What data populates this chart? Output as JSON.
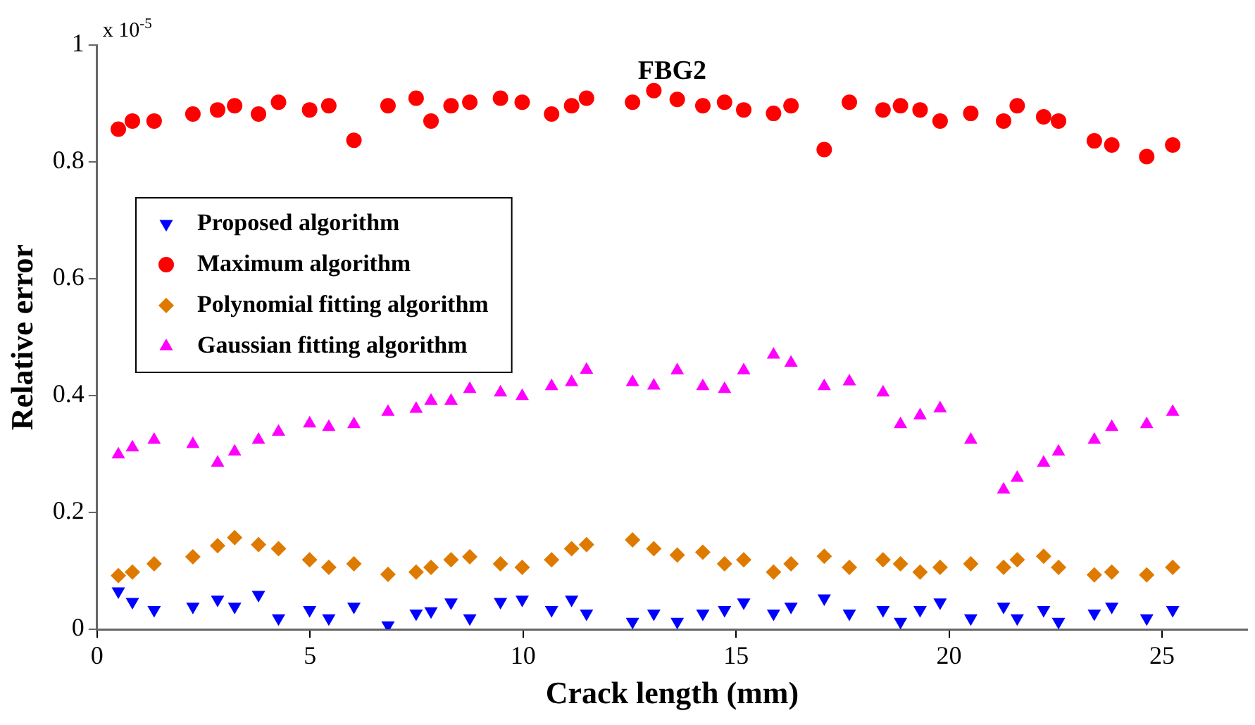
{
  "chart_data": {
    "type": "scatter",
    "title": "FBG2",
    "xlabel": "Crack length (mm)",
    "ylabel": "Relative error",
    "annotations": [
      "x 10$^{-5}$"
    ],
    "x": [
      0.5,
      0.83,
      1.34,
      2.25,
      2.83,
      3.23,
      3.79,
      4.26,
      4.99,
      5.44,
      6.03,
      6.83,
      7.49,
      7.84,
      8.31,
      8.75,
      9.47,
      9.98,
      10.67,
      11.14,
      11.49,
      12.57,
      13.07,
      13.62,
      14.22,
      14.73,
      15.18,
      15.88,
      16.29,
      17.07,
      17.66,
      18.45,
      18.86,
      19.32,
      19.79,
      20.51,
      21.28,
      21.6,
      22.22,
      22.57,
      23.41,
      23.82,
      24.64,
      25.25
    ],
    "series": [
      {
        "name": "Proposed algorithm",
        "color": "#0000ff",
        "marker": "triangle-down",
        "values": [
          0.065,
          0.047,
          0.033,
          0.039,
          0.051,
          0.039,
          0.059,
          0.019,
          0.033,
          0.019,
          0.039,
          0.007,
          0.027,
          0.031,
          0.046,
          0.019,
          0.047,
          0.051,
          0.033,
          0.051,
          0.027,
          0.013,
          0.027,
          0.013,
          0.027,
          0.033,
          0.046,
          0.027,
          0.039,
          0.053,
          0.027,
          0.033,
          0.013,
          0.033,
          0.046,
          0.019,
          0.039,
          0.019,
          0.033,
          0.013,
          0.027,
          0.039,
          0.019,
          0.033
        ]
      },
      {
        "name": "Maximum algorithm",
        "color": "#ff0000",
        "marker": "circle",
        "values": [
          0.856,
          0.87,
          0.87,
          0.882,
          0.889,
          0.896,
          0.882,
          0.902,
          0.889,
          0.896,
          0.837,
          0.896,
          0.909,
          0.87,
          0.896,
          0.902,
          0.909,
          0.902,
          0.882,
          0.896,
          0.909,
          0.902,
          0.922,
          0.907,
          0.896,
          0.902,
          0.889,
          0.883,
          0.896,
          0.821,
          0.902,
          0.889,
          0.896,
          0.889,
          0.87,
          0.883,
          0.87,
          0.896,
          0.877,
          0.87,
          0.836,
          0.829,
          0.809,
          0.829
        ]
      },
      {
        "name": "Polynomial fitting algorithm",
        "color": "#df7a00",
        "marker": "diamond",
        "values": [
          0.092,
          0.098,
          0.112,
          0.124,
          0.143,
          0.157,
          0.145,
          0.138,
          0.119,
          0.106,
          0.112,
          0.094,
          0.098,
          0.106,
          0.119,
          0.124,
          0.112,
          0.106,
          0.119,
          0.138,
          0.145,
          0.153,
          0.138,
          0.127,
          0.132,
          0.112,
          0.119,
          0.098,
          0.112,
          0.125,
          0.106,
          0.119,
          0.112,
          0.098,
          0.106,
          0.112,
          0.106,
          0.119,
          0.125,
          0.106,
          0.093,
          0.098,
          0.093,
          0.106
        ]
      },
      {
        "name": "Gaussian fitting algorithm",
        "color": "#ff00ff",
        "marker": "triangle",
        "values": [
          0.299,
          0.311,
          0.324,
          0.317,
          0.285,
          0.304,
          0.324,
          0.338,
          0.352,
          0.346,
          0.351,
          0.372,
          0.377,
          0.391,
          0.391,
          0.411,
          0.405,
          0.399,
          0.416,
          0.423,
          0.444,
          0.423,
          0.417,
          0.443,
          0.416,
          0.411,
          0.443,
          0.47,
          0.456,
          0.416,
          0.424,
          0.405,
          0.351,
          0.366,
          0.378,
          0.324,
          0.239,
          0.259,
          0.285,
          0.304,
          0.324,
          0.346,
          0.351,
          0.372
        ]
      }
    ],
    "xlim": [
      0,
      27
    ],
    "xticks": [
      0,
      5,
      10,
      15,
      20,
      25
    ],
    "ylim": [
      0,
      1
    ],
    "yticks": [
      0,
      0.2,
      0.4,
      0.6,
      0.8,
      1
    ],
    "grid": false,
    "legend": "top left"
  }
}
